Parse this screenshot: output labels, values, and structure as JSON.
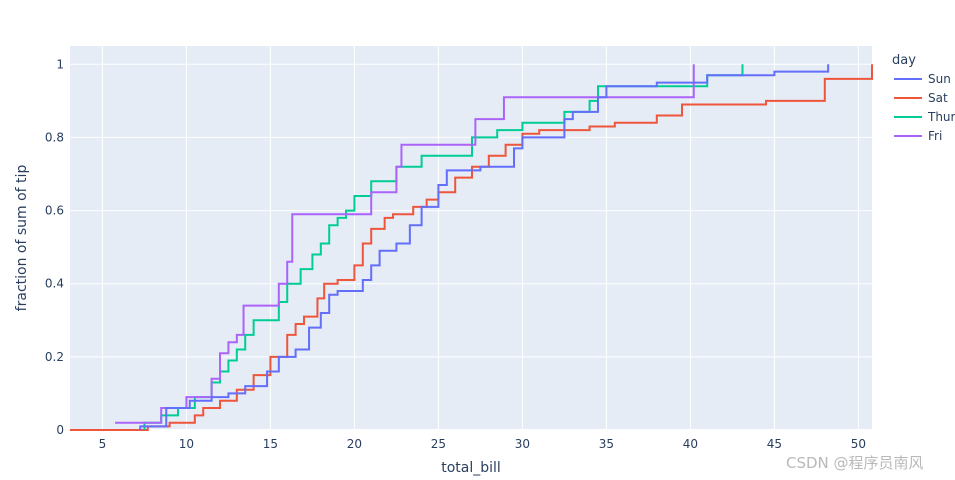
{
  "chart_data": {
    "type": "line",
    "subtype": "ecdf-step",
    "xlabel": "total_bill",
    "ylabel": "fraction of sum of tip",
    "xlim": [
      3.07,
      50.81
    ],
    "ylim": [
      0,
      1.05
    ],
    "x_ticks": [
      5,
      10,
      15,
      20,
      25,
      30,
      35,
      40,
      45,
      50
    ],
    "y_ticks": [
      0,
      0.2,
      0.4,
      0.6,
      0.8,
      1
    ],
    "grid": true,
    "plot_bg": "#e5ecf6",
    "legend": {
      "title": "day",
      "placement": "right"
    },
    "series": [
      {
        "name": "Sun",
        "color": "#636efa",
        "points": [
          [
            7.25,
            0.0
          ],
          [
            7.25,
            0.01
          ],
          [
            8.8,
            0.01
          ],
          [
            8.8,
            0.06
          ],
          [
            10.2,
            0.06
          ],
          [
            10.2,
            0.08
          ],
          [
            11.5,
            0.08
          ],
          [
            11.5,
            0.09
          ],
          [
            12.5,
            0.09
          ],
          [
            12.5,
            0.1
          ],
          [
            13.5,
            0.1
          ],
          [
            13.5,
            0.12
          ],
          [
            14.8,
            0.12
          ],
          [
            14.8,
            0.16
          ],
          [
            15.5,
            0.16
          ],
          [
            15.5,
            0.2
          ],
          [
            16.5,
            0.2
          ],
          [
            16.5,
            0.22
          ],
          [
            17.3,
            0.22
          ],
          [
            17.3,
            0.28
          ],
          [
            18.0,
            0.28
          ],
          [
            18.0,
            0.32
          ],
          [
            18.5,
            0.32
          ],
          [
            18.5,
            0.37
          ],
          [
            19.0,
            0.37
          ],
          [
            19.0,
            0.38
          ],
          [
            20.5,
            0.38
          ],
          [
            20.5,
            0.41
          ],
          [
            21.0,
            0.41
          ],
          [
            21.0,
            0.45
          ],
          [
            21.5,
            0.45
          ],
          [
            21.5,
            0.49
          ],
          [
            22.5,
            0.49
          ],
          [
            22.5,
            0.51
          ],
          [
            23.3,
            0.51
          ],
          [
            23.3,
            0.56
          ],
          [
            24.0,
            0.56
          ],
          [
            24.0,
            0.61
          ],
          [
            25.0,
            0.61
          ],
          [
            25.0,
            0.67
          ],
          [
            25.5,
            0.67
          ],
          [
            25.5,
            0.71
          ],
          [
            27.5,
            0.71
          ],
          [
            27.5,
            0.72
          ],
          [
            29.5,
            0.72
          ],
          [
            29.5,
            0.77
          ],
          [
            30.0,
            0.77
          ],
          [
            30.0,
            0.8
          ],
          [
            32.5,
            0.8
          ],
          [
            32.5,
            0.85
          ],
          [
            33.0,
            0.85
          ],
          [
            33.0,
            0.87
          ],
          [
            34.5,
            0.87
          ],
          [
            34.5,
            0.91
          ],
          [
            35.0,
            0.91
          ],
          [
            35.0,
            0.94
          ],
          [
            38.0,
            0.94
          ],
          [
            38.0,
            0.95
          ],
          [
            41.0,
            0.95
          ],
          [
            41.0,
            0.97
          ],
          [
            45.0,
            0.97
          ],
          [
            45.0,
            0.98
          ],
          [
            48.2,
            0.98
          ],
          [
            48.2,
            1.0
          ]
        ]
      },
      {
        "name": "Sat",
        "color": "#ef553b",
        "points": [
          [
            3.07,
            0.0
          ],
          [
            7.7,
            0.0
          ],
          [
            7.7,
            0.01
          ],
          [
            9.0,
            0.01
          ],
          [
            9.0,
            0.02
          ],
          [
            10.5,
            0.02
          ],
          [
            10.5,
            0.04
          ],
          [
            11.0,
            0.04
          ],
          [
            11.0,
            0.06
          ],
          [
            12.0,
            0.06
          ],
          [
            12.0,
            0.08
          ],
          [
            13.0,
            0.08
          ],
          [
            13.0,
            0.11
          ],
          [
            14.0,
            0.11
          ],
          [
            14.0,
            0.15
          ],
          [
            15.0,
            0.15
          ],
          [
            15.0,
            0.2
          ],
          [
            16.0,
            0.2
          ],
          [
            16.0,
            0.26
          ],
          [
            16.5,
            0.26
          ],
          [
            16.5,
            0.29
          ],
          [
            17.0,
            0.29
          ],
          [
            17.0,
            0.31
          ],
          [
            17.8,
            0.31
          ],
          [
            17.8,
            0.36
          ],
          [
            18.2,
            0.36
          ],
          [
            18.2,
            0.4
          ],
          [
            19.0,
            0.4
          ],
          [
            19.0,
            0.41
          ],
          [
            20.0,
            0.41
          ],
          [
            20.0,
            0.45
          ],
          [
            20.5,
            0.45
          ],
          [
            20.5,
            0.51
          ],
          [
            21.0,
            0.51
          ],
          [
            21.0,
            0.55
          ],
          [
            21.8,
            0.55
          ],
          [
            21.8,
            0.58
          ],
          [
            22.3,
            0.58
          ],
          [
            22.3,
            0.59
          ],
          [
            23.5,
            0.59
          ],
          [
            23.5,
            0.61
          ],
          [
            24.3,
            0.61
          ],
          [
            24.3,
            0.63
          ],
          [
            25.0,
            0.63
          ],
          [
            25.0,
            0.65
          ],
          [
            26.0,
            0.65
          ],
          [
            26.0,
            0.69
          ],
          [
            27.0,
            0.69
          ],
          [
            27.0,
            0.72
          ],
          [
            28.0,
            0.72
          ],
          [
            28.0,
            0.75
          ],
          [
            29.0,
            0.75
          ],
          [
            29.0,
            0.78
          ],
          [
            30.0,
            0.78
          ],
          [
            30.0,
            0.81
          ],
          [
            31.0,
            0.81
          ],
          [
            31.0,
            0.82
          ],
          [
            34.0,
            0.82
          ],
          [
            34.0,
            0.83
          ],
          [
            35.5,
            0.83
          ],
          [
            35.5,
            0.84
          ],
          [
            38.0,
            0.84
          ],
          [
            38.0,
            0.86
          ],
          [
            39.5,
            0.86
          ],
          [
            39.5,
            0.89
          ],
          [
            44.5,
            0.89
          ],
          [
            44.5,
            0.9
          ],
          [
            48.0,
            0.9
          ],
          [
            48.0,
            0.96
          ],
          [
            50.81,
            0.96
          ],
          [
            50.81,
            1.0
          ]
        ]
      },
      {
        "name": "Thur",
        "color": "#00cc96",
        "points": [
          [
            7.5,
            0.0
          ],
          [
            7.5,
            0.02
          ],
          [
            8.5,
            0.02
          ],
          [
            8.5,
            0.04
          ],
          [
            9.5,
            0.04
          ],
          [
            9.5,
            0.06
          ],
          [
            10.5,
            0.06
          ],
          [
            10.5,
            0.09
          ],
          [
            11.5,
            0.09
          ],
          [
            11.5,
            0.13
          ],
          [
            12.0,
            0.13
          ],
          [
            12.0,
            0.16
          ],
          [
            12.5,
            0.16
          ],
          [
            12.5,
            0.19
          ],
          [
            13.0,
            0.19
          ],
          [
            13.0,
            0.22
          ],
          [
            13.5,
            0.22
          ],
          [
            13.5,
            0.26
          ],
          [
            14.0,
            0.26
          ],
          [
            14.0,
            0.3
          ],
          [
            15.5,
            0.3
          ],
          [
            15.5,
            0.35
          ],
          [
            16.0,
            0.35
          ],
          [
            16.0,
            0.4
          ],
          [
            16.8,
            0.4
          ],
          [
            16.8,
            0.44
          ],
          [
            17.5,
            0.44
          ],
          [
            17.5,
            0.48
          ],
          [
            18.0,
            0.48
          ],
          [
            18.0,
            0.51
          ],
          [
            18.5,
            0.51
          ],
          [
            18.5,
            0.56
          ],
          [
            19.0,
            0.56
          ],
          [
            19.0,
            0.58
          ],
          [
            19.5,
            0.58
          ],
          [
            19.5,
            0.6
          ],
          [
            20.0,
            0.6
          ],
          [
            20.0,
            0.64
          ],
          [
            21.0,
            0.64
          ],
          [
            21.0,
            0.68
          ],
          [
            22.5,
            0.68
          ],
          [
            22.5,
            0.72
          ],
          [
            24.0,
            0.72
          ],
          [
            24.0,
            0.75
          ],
          [
            27.0,
            0.75
          ],
          [
            27.0,
            0.8
          ],
          [
            28.5,
            0.8
          ],
          [
            28.5,
            0.82
          ],
          [
            30.0,
            0.82
          ],
          [
            30.0,
            0.84
          ],
          [
            32.5,
            0.84
          ],
          [
            32.5,
            0.87
          ],
          [
            34.0,
            0.87
          ],
          [
            34.0,
            0.9
          ],
          [
            34.5,
            0.9
          ],
          [
            34.5,
            0.94
          ],
          [
            41.0,
            0.94
          ],
          [
            41.0,
            0.97
          ],
          [
            43.1,
            0.97
          ],
          [
            43.1,
            1.0
          ]
        ]
      },
      {
        "name": "Fri",
        "color": "#ab63fa",
        "points": [
          [
            5.75,
            0.02
          ],
          [
            8.5,
            0.02
          ],
          [
            8.5,
            0.06
          ],
          [
            10.0,
            0.06
          ],
          [
            10.0,
            0.09
          ],
          [
            11.5,
            0.09
          ],
          [
            11.5,
            0.14
          ],
          [
            12.0,
            0.14
          ],
          [
            12.0,
            0.21
          ],
          [
            12.5,
            0.21
          ],
          [
            12.5,
            0.24
          ],
          [
            13.0,
            0.24
          ],
          [
            13.0,
            0.26
          ],
          [
            13.4,
            0.26
          ],
          [
            13.4,
            0.34
          ],
          [
            15.5,
            0.34
          ],
          [
            15.5,
            0.4
          ],
          [
            16.0,
            0.4
          ],
          [
            16.0,
            0.46
          ],
          [
            16.3,
            0.46
          ],
          [
            16.3,
            0.59
          ],
          [
            20.0,
            0.59
          ],
          [
            20.0,
            0.59
          ],
          [
            21.0,
            0.59
          ],
          [
            21.0,
            0.65
          ],
          [
            22.5,
            0.65
          ],
          [
            22.5,
            0.72
          ],
          [
            22.8,
            0.72
          ],
          [
            22.8,
            0.78
          ],
          [
            27.2,
            0.78
          ],
          [
            27.2,
            0.85
          ],
          [
            28.9,
            0.85
          ],
          [
            28.9,
            0.91
          ],
          [
            40.2,
            0.91
          ],
          [
            40.2,
            1.0
          ]
        ]
      }
    ]
  },
  "watermark": "CSDN @程序员南风"
}
